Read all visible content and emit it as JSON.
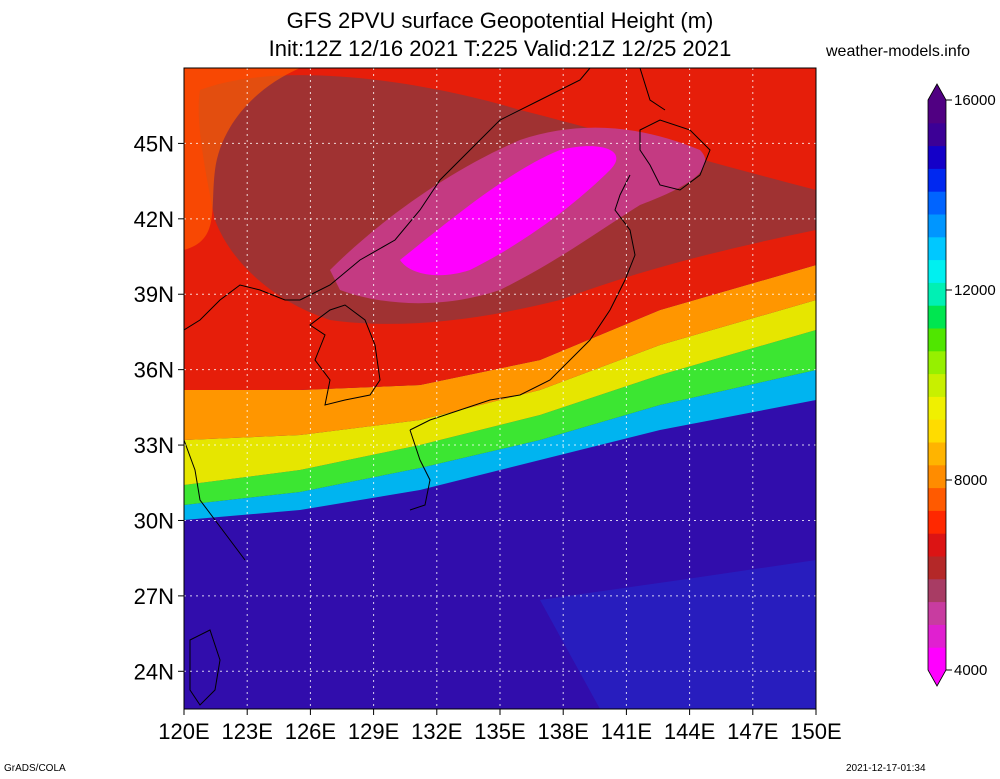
{
  "title": {
    "line1": "GFS 2PVU surface Geopotential Height (m)",
    "line2": "Init:12Z 12/16 2021 T:225 Valid:21Z 12/25 2021"
  },
  "site": "weather-models.info",
  "footer": {
    "left": "GrADS/COLA",
    "right": "2021-12-17-01:34"
  },
  "map": {
    "lon_range": [
      120,
      150
    ],
    "lat_range": [
      22.5,
      48
    ],
    "lon_ticks": [
      "120E",
      "123E",
      "126E",
      "129E",
      "132E",
      "135E",
      "138E",
      "141E",
      "144E",
      "147E",
      "150E"
    ],
    "lon_values": [
      120,
      123,
      126,
      129,
      132,
      135,
      138,
      141,
      144,
      147,
      150
    ],
    "lat_ticks": [
      "24N",
      "27N",
      "30N",
      "33N",
      "36N",
      "39N",
      "42N",
      "45N"
    ],
    "lat_values": [
      24,
      27,
      30,
      33,
      36,
      39,
      42,
      45
    ],
    "gridlines": "dotted"
  },
  "colorbar": {
    "range": [
      4000,
      16000
    ],
    "labels": [
      "4000",
      "8000",
      "12000",
      "16000"
    ],
    "label_values": [
      4000,
      8000,
      12000,
      16000
    ],
    "colors": [
      "#ff00ff",
      "#e020d0",
      "#c83ca0",
      "#a83c64",
      "#b42828",
      "#dc1414",
      "#ff2800",
      "#ff5a00",
      "#ff8c00",
      "#ffb400",
      "#ffdc00",
      "#f0f000",
      "#c8f000",
      "#96f000",
      "#50e600",
      "#00e650",
      "#00f0b4",
      "#00f0f0",
      "#00c8ff",
      "#0096ff",
      "#0064ff",
      "#0028f0",
      "#1400c8",
      "#3c0096",
      "#500082"
    ]
  },
  "field_zones": [
    {
      "color": "#c43a82",
      "label": "low"
    },
    {
      "color": "#ff00ff",
      "label": "min"
    }
  ]
}
